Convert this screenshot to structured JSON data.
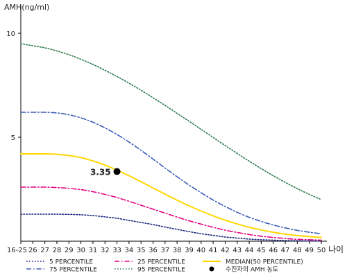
{
  "chart_data": {
    "type": "line",
    "ylabel": "AMH(ng/ml)",
    "xlabel": "나이",
    "ylim": [
      0,
      11
    ],
    "yticks": [
      5,
      10
    ],
    "categories": [
      "16-25",
      "26",
      "27",
      "28",
      "29",
      "30",
      "31",
      "32",
      "33",
      "34",
      "35",
      "36",
      "37",
      "38",
      "39",
      "40",
      "41",
      "42",
      "43",
      "44",
      "45",
      "46",
      "47",
      "48",
      "49",
      "50"
    ],
    "series": [
      {
        "name": "5 PERCENTILE",
        "color": "#1a237e",
        "dash": "dotted",
        "values": [
          1.3,
          1.3,
          1.3,
          1.3,
          1.29,
          1.27,
          1.23,
          1.17,
          1.1,
          1.0,
          0.9,
          0.8,
          0.68,
          0.57,
          0.46,
          0.36,
          0.28,
          0.2,
          0.15,
          0.1,
          0.07,
          0.05,
          0.03,
          0.02,
          0.01,
          0.01
        ]
      },
      {
        "name": "25 PERCENTILE",
        "color": "#e6007e",
        "dash": "dashdot",
        "values": [
          2.6,
          2.6,
          2.6,
          2.58,
          2.54,
          2.48,
          2.38,
          2.25,
          2.1,
          1.92,
          1.73,
          1.54,
          1.35,
          1.16,
          0.98,
          0.82,
          0.67,
          0.53,
          0.42,
          0.32,
          0.24,
          0.18,
          0.13,
          0.09,
          0.07,
          0.05
        ]
      },
      {
        "name": "MEDIAN(50 PERCENTILE)",
        "color": "#ffd700",
        "dash": "solid",
        "values": [
          4.2,
          4.2,
          4.2,
          4.18,
          4.12,
          4.02,
          3.86,
          3.66,
          3.42,
          3.15,
          2.86,
          2.56,
          2.26,
          1.97,
          1.7,
          1.45,
          1.22,
          1.01,
          0.83,
          0.67,
          0.54,
          0.43,
          0.34,
          0.27,
          0.22,
          0.18
        ]
      },
      {
        "name": "75 PERCENTILE",
        "color": "#3d5cb8",
        "dash": "dashdot",
        "values": [
          6.2,
          6.2,
          6.2,
          6.17,
          6.08,
          5.93,
          5.72,
          5.45,
          5.13,
          4.77,
          4.37,
          3.95,
          3.52,
          3.1,
          2.7,
          2.33,
          1.98,
          1.67,
          1.39,
          1.15,
          0.95,
          0.78,
          0.64,
          0.52,
          0.43,
          0.36
        ]
      },
      {
        "name": "95 PERCENTILE",
        "color": "#2e7d4f",
        "dash": "dotted",
        "values": [
          9.5,
          9.4,
          9.3,
          9.15,
          8.97,
          8.75,
          8.5,
          8.22,
          7.92,
          7.6,
          7.26,
          6.9,
          6.53,
          6.15,
          5.77,
          5.38,
          4.99,
          4.6,
          4.22,
          3.85,
          3.49,
          3.15,
          2.83,
          2.53,
          2.25,
          2.0
        ]
      }
    ],
    "marker": {
      "name": "수진자의 AMH 농도",
      "x": "33",
      "y": 3.35,
      "label": "3.35",
      "color": "#000000"
    },
    "legend_position": "bottom",
    "legend_order": [
      0,
      1,
      2,
      3,
      4
    ]
  }
}
